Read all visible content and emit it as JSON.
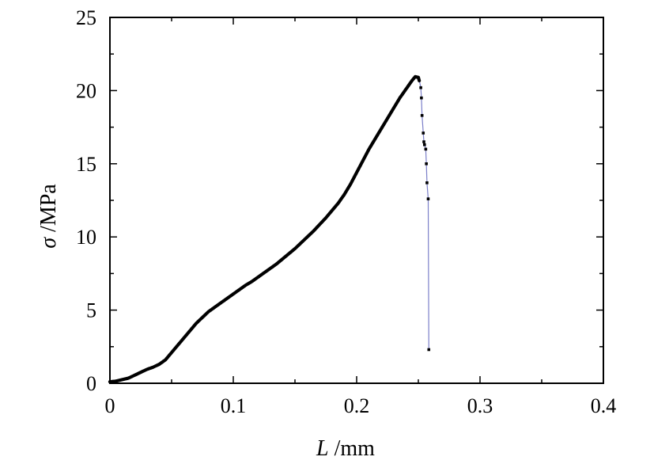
{
  "chart_data": {
    "type": "line",
    "xlabel_symbol": "L",
    "xlabel_unit": " /mm",
    "ylabel_symbol": "σ",
    "ylabel_unit": " /MPa",
    "xlim": [
      0,
      0.4
    ],
    "ylim": [
      0,
      25
    ],
    "x_ticks": [
      0,
      0.1,
      0.2,
      0.3,
      0.4
    ],
    "x_tick_labels": [
      "0",
      "0.1",
      "0.2",
      "0.3",
      "0.4"
    ],
    "y_ticks": [
      0,
      5,
      10,
      15,
      20,
      25
    ],
    "y_tick_labels": [
      "0",
      "5",
      "10",
      "15",
      "20",
      "25"
    ],
    "grid": false,
    "legend": "none",
    "colors": {
      "points": "#000000",
      "line": "#7b7fc9",
      "axes": "#000000"
    },
    "series": [
      {
        "dense_points": [
          [
            0,
            0.1
          ],
          [
            0.005,
            0.15
          ],
          [
            0.01,
            0.25
          ],
          [
            0.015,
            0.35
          ],
          [
            0.02,
            0.55
          ],
          [
            0.025,
            0.75
          ],
          [
            0.03,
            0.95
          ],
          [
            0.035,
            1.1
          ],
          [
            0.04,
            1.3
          ],
          [
            0.045,
            1.6
          ],
          [
            0.05,
            2.1
          ],
          [
            0.055,
            2.6
          ],
          [
            0.06,
            3.1
          ],
          [
            0.065,
            3.6
          ],
          [
            0.07,
            4.1
          ],
          [
            0.075,
            4.5
          ],
          [
            0.08,
            4.9
          ],
          [
            0.085,
            5.2
          ],
          [
            0.09,
            5.5
          ],
          [
            0.095,
            5.8
          ],
          [
            0.1,
            6.1
          ],
          [
            0.105,
            6.4
          ],
          [
            0.11,
            6.7
          ],
          [
            0.115,
            6.95
          ],
          [
            0.12,
            7.25
          ],
          [
            0.125,
            7.55
          ],
          [
            0.13,
            7.85
          ],
          [
            0.135,
            8.15
          ],
          [
            0.14,
            8.5
          ],
          [
            0.145,
            8.85
          ],
          [
            0.15,
            9.2
          ],
          [
            0.155,
            9.6
          ],
          [
            0.16,
            10.0
          ],
          [
            0.165,
            10.4
          ],
          [
            0.17,
            10.85
          ],
          [
            0.175,
            11.3
          ],
          [
            0.18,
            11.8
          ],
          [
            0.185,
            12.3
          ],
          [
            0.19,
            12.9
          ],
          [
            0.195,
            13.6
          ],
          [
            0.2,
            14.4
          ],
          [
            0.205,
            15.2
          ],
          [
            0.21,
            16.0
          ],
          [
            0.215,
            16.7
          ],
          [
            0.22,
            17.4
          ],
          [
            0.225,
            18.1
          ],
          [
            0.23,
            18.8
          ],
          [
            0.235,
            19.5
          ],
          [
            0.24,
            20.1
          ],
          [
            0.245,
            20.7
          ],
          [
            0.2475,
            20.95
          ],
          [
            0.25,
            20.9
          ],
          [
            0.251,
            20.6
          ]
        ],
        "sparse_points": [
          [
            0.252,
            20.2
          ],
          [
            0.2525,
            19.5
          ],
          [
            0.253,
            18.3
          ],
          [
            0.254,
            17.1
          ],
          [
            0.2545,
            16.5
          ],
          [
            0.255,
            16.3
          ],
          [
            0.256,
            16.0
          ],
          [
            0.2565,
            15.0
          ],
          [
            0.257,
            13.7
          ],
          [
            0.258,
            12.6
          ],
          [
            0.2585,
            2.3
          ]
        ]
      }
    ]
  }
}
